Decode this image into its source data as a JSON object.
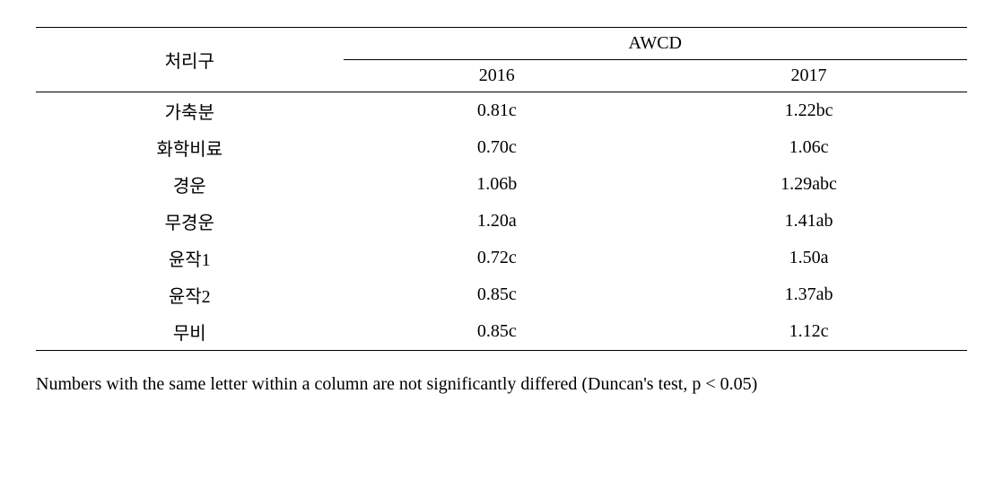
{
  "table": {
    "col_widths_pct": [
      33,
      33,
      34
    ],
    "header": {
      "row_label": "처리구",
      "group_label": "AWCD",
      "years": [
        "2016",
        "2017"
      ]
    },
    "rows": [
      {
        "label": "가축분",
        "y2016": "0.81c",
        "y2017": "1.22bc"
      },
      {
        "label": "화학비료",
        "y2016": "0.70c",
        "y2017": "1.06c"
      },
      {
        "label": "경운",
        "y2016": "1.06b",
        "y2017": "1.29abc"
      },
      {
        "label": "무경운",
        "y2016": "1.20a",
        "y2017": "1.41ab"
      },
      {
        "label": "윤작1",
        "y2016": "0.72c",
        "y2017": "1.50a"
      },
      {
        "label": "윤작2",
        "y2016": "0.85c",
        "y2017": "1.37ab"
      },
      {
        "label": "무비",
        "y2016": "0.85c",
        "y2017": "1.12c"
      }
    ]
  },
  "caption": "Numbers with the same letter within a column are not significantly differed (Duncan's test, p < 0.05)"
}
